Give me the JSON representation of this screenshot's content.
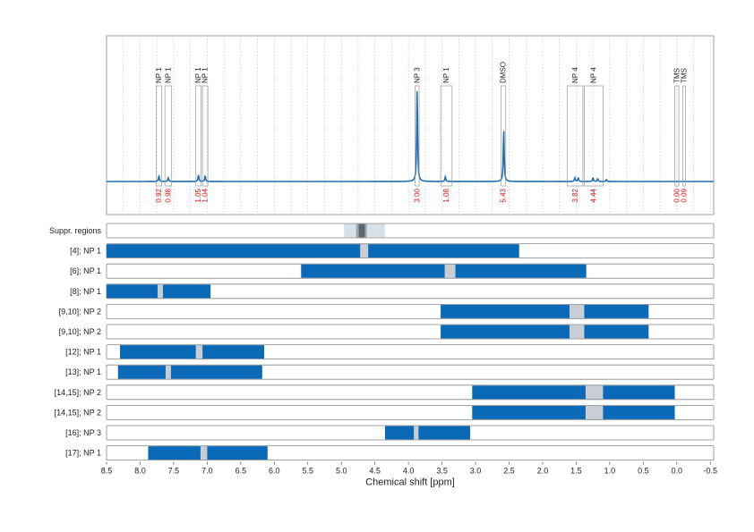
{
  "chart_data": {
    "type": "nmr-spectrum-with-regions",
    "xlabel": "Chemical shift [ppm]",
    "xlim": [
      8.5,
      -0.55
    ],
    "x_reversed": true,
    "x_ticks": [
      "8.5",
      "8.0",
      "7.5",
      "7.0",
      "6.5",
      "6.0",
      "5.5",
      "5.0",
      "4.5",
      "4.0",
      "3.5",
      "3.0",
      "2.5",
      "2.0",
      "1.5",
      "1.0",
      "0.5",
      "0.0",
      "-0.5"
    ],
    "x_tick_values": [
      8.5,
      8.0,
      7.5,
      7.0,
      6.5,
      6.0,
      5.5,
      5.0,
      4.5,
      4.0,
      3.5,
      3.0,
      2.5,
      2.0,
      1.5,
      1.0,
      0.5,
      0.0,
      -0.5
    ],
    "grid": true,
    "spectrum": {
      "color": "#1f6fb5",
      "peaks": [
        {
          "center": 7.72,
          "height": 0.06
        },
        {
          "center": 7.58,
          "height": 0.04
        },
        {
          "center": 7.13,
          "height": 0.07
        },
        {
          "center": 7.03,
          "height": 0.06
        },
        {
          "center": 3.87,
          "height": 1.0
        },
        {
          "center": 3.45,
          "height": 0.05
        },
        {
          "center": 2.58,
          "height": 0.55
        },
        {
          "center": 1.52,
          "height": 0.04
        },
        {
          "center": 1.47,
          "height": 0.04
        },
        {
          "center": 1.25,
          "height": 0.04
        },
        {
          "center": 1.18,
          "height": 0.03
        },
        {
          "center": 1.05,
          "height": 0.02
        }
      ]
    },
    "peak_annotations": [
      {
        "label": "NP 1",
        "lo": 7.68,
        "hi": 7.76,
        "integral": "0.92"
      },
      {
        "label": "NP 1",
        "lo": 7.53,
        "hi": 7.63,
        "integral": "0.98"
      },
      {
        "label": "NP 1",
        "lo": 7.09,
        "hi": 7.17,
        "integral": "1.05"
      },
      {
        "label": "NP 1",
        "lo": 6.99,
        "hi": 7.07,
        "integral": "1.04"
      },
      {
        "label": "NP 3",
        "lo": 3.84,
        "hi": 3.9,
        "integral": "3.00"
      },
      {
        "label": "NP 1",
        "lo": 3.35,
        "hi": 3.52,
        "integral": "1.08"
      },
      {
        "label": "DMSO",
        "lo": 2.55,
        "hi": 2.62,
        "integral": "5.43"
      },
      {
        "label": "NP 4",
        "lo": 1.4,
        "hi": 1.63,
        "integral": "3.82"
      },
      {
        "label": "NP 4",
        "lo": 1.1,
        "hi": 1.38,
        "integral": "4.44"
      },
      {
        "label": "TMS",
        "lo": -0.03,
        "hi": 0.03,
        "integral": "0.00"
      },
      {
        "label": "TMS",
        "lo": -0.13,
        "hi": -0.09,
        "integral": "0.09"
      }
    ],
    "suppression": {
      "label": "Suppr. regions",
      "outer": [
        4.96,
        4.35
      ],
      "inner": [
        4.78,
        4.62
      ],
      "core": [
        4.74,
        4.65
      ]
    },
    "rows": [
      {
        "label": "[4]; NP 1",
        "start": 8.5,
        "end": 2.35,
        "gap": [
          4.72,
          4.6
        ]
      },
      {
        "label": "[6]; NP 1",
        "start": 5.6,
        "end": 1.35,
        "gap": [
          3.46,
          3.3
        ]
      },
      {
        "label": "[8]; NP 1",
        "start": 8.5,
        "end": 6.95,
        "gap": [
          7.74,
          7.66
        ]
      },
      {
        "label": "[9,10]; NP 2",
        "start": 3.52,
        "end": 0.42,
        "gap": [
          1.6,
          1.38
        ]
      },
      {
        "label": "[9,10]; NP 2",
        "start": 3.52,
        "end": 0.42,
        "gap": [
          1.6,
          1.38
        ]
      },
      {
        "label": "[12]; NP 1",
        "start": 8.3,
        "end": 6.15,
        "gap": [
          7.17,
          7.07
        ]
      },
      {
        "label": "[13]; NP 1",
        "start": 8.33,
        "end": 6.18,
        "gap": [
          7.62,
          7.54
        ]
      },
      {
        "label": "[14,15]; NP 2",
        "start": 3.05,
        "end": 0.03,
        "gap": [
          1.36,
          1.1
        ]
      },
      {
        "label": "[14,15]; NP 2",
        "start": 3.05,
        "end": 0.03,
        "gap": [
          1.36,
          1.1
        ]
      },
      {
        "label": "[16]; NP 3",
        "start": 4.35,
        "end": 3.08,
        "gap": [
          3.92,
          3.85
        ]
      },
      {
        "label": "[17]; NP 1",
        "start": 7.88,
        "end": 6.1,
        "gap": [
          7.1,
          7.0
        ]
      }
    ],
    "colors": {
      "bar": "#0a6ab8",
      "gap": "#c8ced4",
      "supp_outer": "#d9e1e8",
      "supp_inner": "#9aa6b0",
      "supp_core": "#5a6670",
      "box": "#888888",
      "grid": "#bbbbbb",
      "spectrum": "#1f6fb5",
      "integral": "#e01010"
    }
  }
}
